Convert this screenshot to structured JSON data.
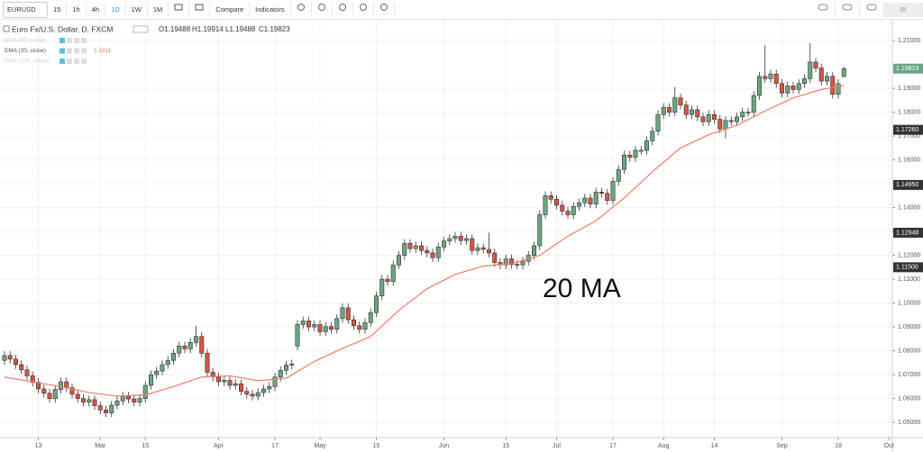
{
  "toolbar": {
    "symbol": "EURUSD",
    "intervals": [
      "15",
      "1h",
      "4h",
      "1D",
      "1W",
      "1M"
    ],
    "active_interval": "1D",
    "compare": "Compare",
    "indicators": "Indicators",
    "user": "IR"
  },
  "chart_data": {
    "type": "candlestick",
    "title": "Euro Fx/U.S. Dollar, D, FXCM",
    "ohlc_legend": [
      "O1.19488",
      "H1.19914",
      "L1.19488",
      "C1.19823"
    ],
    "up_color": "#6ba583",
    "down_color": "#d75442",
    "open": [
      1.076,
      1.078,
      1.0765,
      1.0742,
      1.072,
      1.0695,
      1.0668,
      1.064,
      1.0622,
      1.06,
      1.0638,
      1.067,
      1.0645,
      1.0618,
      1.06,
      1.0585,
      1.0595,
      1.057,
      1.0552,
      1.054,
      1.0572,
      1.059,
      1.061,
      1.0598,
      1.0585,
      1.06,
      1.0655,
      1.07,
      1.0715,
      1.0742,
      1.076,
      1.079,
      1.082,
      1.0808,
      1.0835,
      1.086,
      1.079,
      1.071,
      1.069,
      1.067,
      1.0676,
      1.0655,
      1.0662,
      1.063,
      1.0618,
      1.061,
      1.0625,
      1.064,
      1.065,
      1.069,
      1.0718,
      1.074,
      1.082,
      1.091,
      1.0925,
      1.09,
      1.091,
      1.088,
      1.0902,
      1.089,
      1.0935,
      1.098,
      1.093,
      1.0905,
      1.089,
      1.0918,
      1.096,
      1.103,
      1.11,
      1.109,
      1.116,
      1.12,
      1.125,
      1.1228,
      1.124,
      1.122,
      1.121,
      1.119,
      1.1235,
      1.126,
      1.127,
      1.128,
      1.1262,
      1.127,
      1.122,
      1.1232,
      1.1225,
      1.121,
      1.117,
      1.116,
      1.1185,
      1.1162,
      1.116,
      1.1175,
      1.12,
      1.124,
      1.137,
      1.145,
      1.1435,
      1.141,
      1.1385,
      1.137,
      1.1405,
      1.142,
      1.144,
      1.1415,
      1.1465,
      1.146,
      1.143,
      1.151,
      1.156,
      1.162,
      1.161,
      1.164,
      1.164,
      1.168,
      1.172,
      1.179,
      1.182,
      1.18,
      1.186,
      1.183,
      1.179,
      1.181,
      1.178,
      1.176,
      1.179,
      1.177,
      1.173,
      1.1765,
      1.176,
      1.178,
      1.18,
      1.18,
      1.187,
      1.195,
      1.194,
      1.196,
      1.192,
      1.188,
      1.191,
      1.1895,
      1.192,
      1.194,
      1.201,
      1.1985,
      1.193,
      1.195,
      1.1875,
      1.19488
    ],
    "high": [
      1.0798,
      1.0798,
      1.0783,
      1.076,
      1.0738,
      1.0713,
      1.0686,
      1.0658,
      1.064,
      1.0656,
      1.0688,
      1.0688,
      1.0663,
      1.0636,
      1.0618,
      1.0613,
      1.0613,
      1.0588,
      1.057,
      1.059,
      1.0608,
      1.0628,
      1.0628,
      1.0616,
      1.0618,
      1.0673,
      1.0718,
      1.0733,
      1.076,
      1.0778,
      1.0808,
      1.0838,
      1.0838,
      1.0853,
      1.0905,
      1.0878,
      1.0808,
      1.0728,
      1.0708,
      1.0694,
      1.0694,
      1.068,
      1.068,
      1.0648,
      1.0636,
      1.0643,
      1.0658,
      1.0668,
      1.0708,
      1.0736,
      1.0758,
      1.0763,
      1.0928,
      1.0943,
      1.0943,
      1.0928,
      1.0928,
      1.092,
      1.092,
      1.0953,
      1.0998,
      1.0998,
      1.0948,
      1.0923,
      1.0936,
      1.0978,
      1.1048,
      1.1118,
      1.1118,
      1.1178,
      1.1218,
      1.1268,
      1.1268,
      1.1258,
      1.1258,
      1.1238,
      1.1228,
      1.1253,
      1.1278,
      1.1288,
      1.1298,
      1.1298,
      1.1288,
      1.1288,
      1.125,
      1.125,
      1.1295,
      1.1228,
      1.1188,
      1.1203,
      1.1203,
      1.118,
      1.1193,
      1.1218,
      1.1258,
      1.1388,
      1.1468,
      1.1468,
      1.1453,
      1.1428,
      1.1403,
      1.1423,
      1.1438,
      1.1458,
      1.1458,
      1.1483,
      1.1483,
      1.1478,
      1.1528,
      1.1578,
      1.1638,
      1.1638,
      1.1658,
      1.1658,
      1.1698,
      1.1738,
      1.1808,
      1.1838,
      1.1838,
      1.1905,
      1.1878,
      1.1848,
      1.1828,
      1.1828,
      1.1798,
      1.1808,
      1.1808,
      1.1788,
      1.1783,
      1.1783,
      1.1798,
      1.1818,
      1.1818,
      1.1888,
      1.1968,
      1.208,
      1.1978,
      1.1978,
      1.1938,
      1.1928,
      1.1928,
      1.1938,
      1.1958,
      1.209,
      1.2028,
      1.2003,
      1.1968,
      1.1968,
      1.1938,
      1.19914
    ],
    "low": [
      1.0742,
      1.0747,
      1.0724,
      1.0702,
      1.0677,
      1.065,
      1.0622,
      1.0604,
      1.0582,
      1.0582,
      1.062,
      1.0627,
      1.06,
      1.0582,
      1.0567,
      1.0567,
      1.0552,
      1.0534,
      1.0522,
      1.0522,
      1.0554,
      1.0572,
      1.058,
      1.0567,
      1.0567,
      1.0582,
      1.0637,
      1.0682,
      1.0697,
      1.0724,
      1.0742,
      1.0772,
      1.079,
      1.079,
      1.0817,
      1.0772,
      1.0692,
      1.0672,
      1.0652,
      1.0652,
      1.0637,
      1.0637,
      1.0612,
      1.06,
      1.0592,
      1.0592,
      1.0607,
      1.0622,
      1.0632,
      1.0672,
      1.07,
      1.0722,
      1.0802,
      1.0892,
      1.0882,
      1.0882,
      1.0862,
      1.0862,
      1.0872,
      1.0872,
      1.0917,
      1.0912,
      1.0887,
      1.0872,
      1.0872,
      1.09,
      1.0942,
      1.1012,
      1.1072,
      1.1072,
      1.1142,
      1.1182,
      1.121,
      1.121,
      1.1202,
      1.1192,
      1.1172,
      1.1172,
      1.1217,
      1.1242,
      1.1252,
      1.1244,
      1.1244,
      1.1202,
      1.1202,
      1.1207,
      1.1192,
      1.1152,
      1.1142,
      1.1142,
      1.1144,
      1.1142,
      1.1142,
      1.1157,
      1.1182,
      1.1222,
      1.1352,
      1.1417,
      1.1392,
      1.1367,
      1.1352,
      1.1352,
      1.1387,
      1.1402,
      1.1397,
      1.1397,
      1.1442,
      1.1412,
      1.1412,
      1.1492,
      1.1542,
      1.1592,
      1.1592,
      1.1622,
      1.1622,
      1.1662,
      1.1702,
      1.1772,
      1.1782,
      1.1782,
      1.1812,
      1.1772,
      1.1772,
      1.1762,
      1.1742,
      1.1742,
      1.1752,
      1.1712,
      1.169,
      1.1742,
      1.1742,
      1.1762,
      1.1782,
      1.1782,
      1.1852,
      1.1922,
      1.1922,
      1.1902,
      1.1862,
      1.1862,
      1.1877,
      1.1877,
      1.1902,
      1.1922,
      1.1967,
      1.1912,
      1.1912,
      1.1857,
      1.1857,
      1.19488
    ],
    "close": [
      1.078,
      1.0765,
      1.0742,
      1.072,
      1.0695,
      1.0668,
      1.064,
      1.0622,
      1.06,
      1.0638,
      1.067,
      1.0645,
      1.0618,
      1.06,
      1.0585,
      1.0595,
      1.057,
      1.0552,
      1.054,
      1.0572,
      1.059,
      1.061,
      1.0598,
      1.0585,
      1.06,
      1.0655,
      1.07,
      1.0715,
      1.0742,
      1.076,
      1.079,
      1.082,
      1.0808,
      1.0835,
      1.086,
      1.079,
      1.071,
      1.069,
      1.067,
      1.0676,
      1.0655,
      1.0662,
      1.063,
      1.0618,
      1.061,
      1.0625,
      1.064,
      1.065,
      1.069,
      1.0718,
      1.074,
      1.0745,
      1.091,
      1.0925,
      1.09,
      1.091,
      1.088,
      1.0902,
      1.089,
      1.0935,
      1.098,
      1.093,
      1.0905,
      1.089,
      1.0918,
      1.096,
      1.103,
      1.11,
      1.109,
      1.116,
      1.12,
      1.125,
      1.1228,
      1.124,
      1.122,
      1.121,
      1.119,
      1.1235,
      1.126,
      1.127,
      1.128,
      1.1262,
      1.127,
      1.122,
      1.1232,
      1.1225,
      1.121,
      1.117,
      1.116,
      1.1185,
      1.1162,
      1.116,
      1.1175,
      1.12,
      1.124,
      1.137,
      1.145,
      1.1435,
      1.141,
      1.1385,
      1.137,
      1.1405,
      1.142,
      1.144,
      1.1415,
      1.1465,
      1.146,
      1.143,
      1.151,
      1.156,
      1.162,
      1.161,
      1.164,
      1.164,
      1.168,
      1.172,
      1.179,
      1.182,
      1.18,
      1.186,
      1.183,
      1.179,
      1.181,
      1.178,
      1.176,
      1.179,
      1.177,
      1.173,
      1.1765,
      1.176,
      1.178,
      1.18,
      1.18,
      1.187,
      1.195,
      1.194,
      1.196,
      1.192,
      1.188,
      1.191,
      1.1895,
      1.192,
      1.194,
      1.201,
      1.1985,
      1.193,
      1.195,
      1.1875,
      1.192,
      1.19823
    ],
    "xlim": [
      -0.8,
      157.6
    ],
    "xticks": [
      {
        "value": 6,
        "label": "13"
      },
      {
        "value": 17,
        "label": "Mar"
      },
      {
        "value": 25,
        "label": "15"
      },
      {
        "value": 38,
        "label": "Apr"
      },
      {
        "value": 48,
        "label": "17"
      },
      {
        "value": 56,
        "label": "May"
      },
      {
        "value": 66,
        "label": "15"
      },
      {
        "value": 78,
        "label": "Jun"
      },
      {
        "value": 89,
        "label": "15"
      },
      {
        "value": 98,
        "label": "Jul"
      },
      {
        "value": 108,
        "label": "17"
      },
      {
        "value": 117,
        "label": "Aug"
      },
      {
        "value": 126,
        "label": "14"
      },
      {
        "value": 138,
        "label": "Sep"
      },
      {
        "value": 148,
        "label": "18"
      },
      {
        "value": 157,
        "label": "Oct"
      }
    ],
    "ylim": [
      1.044,
      1.2187
    ],
    "yticks": [
      {
        "value": 1.05,
        "label": "1.05000"
      },
      {
        "value": 1.06,
        "label": "1.06000"
      },
      {
        "value": 1.07,
        "label": "1.07000"
      },
      {
        "value": 1.08,
        "label": "1.08000"
      },
      {
        "value": 1.09,
        "label": "1.09000"
      },
      {
        "value": 1.1,
        "label": "1.10000"
      },
      {
        "value": 1.11,
        "label": "1.11000"
      },
      {
        "value": 1.12,
        "label": "1.12000"
      },
      {
        "value": 1.13,
        "label": "1.13000"
      },
      {
        "value": 1.14,
        "label": "1.14000"
      },
      {
        "value": 1.15,
        "label": "1.15000"
      },
      {
        "value": 1.16,
        "label": "1.16000"
      },
      {
        "value": 1.17,
        "label": "1.17000"
      },
      {
        "value": 1.18,
        "label": "1.18000"
      },
      {
        "value": 1.19,
        "label": "1.19000"
      },
      {
        "value": 1.21,
        "label": "1.21000"
      }
    ],
    "grid": true,
    "price_labels": [
      {
        "value": 1.1726,
        "label": "1.17260"
      },
      {
        "value": 1.1495,
        "label": "1.14950"
      },
      {
        "value": 1.12948,
        "label": "1.12948"
      },
      {
        "value": 1.115,
        "label": "1.11500"
      }
    ],
    "last_price_label": {
      "value": 1.19823,
      "label": "1.19823",
      "color": "#6ba583"
    },
    "overlays": [
      {
        "name": "EMA (50, close)",
        "dimmed": true
      },
      {
        "name": "EMA (20, close)",
        "dimmed": false,
        "color": "#f07c66",
        "last_value_label": "1.1911",
        "x": [
          0,
          5,
          10,
          15,
          20,
          25,
          30,
          35,
          40,
          45,
          50,
          55,
          60,
          65,
          70,
          75,
          80,
          85,
          90,
          95,
          100,
          105,
          110,
          115,
          120,
          125,
          130,
          135,
          140,
          145,
          149
        ],
        "values": [
          1.069,
          1.067,
          1.065,
          1.0625,
          1.061,
          1.0615,
          1.065,
          1.069,
          1.0695,
          1.0675,
          1.0685,
          1.0755,
          1.081,
          1.086,
          1.097,
          1.106,
          1.112,
          1.1155,
          1.1165,
          1.12,
          1.128,
          1.1345,
          1.144,
          1.155,
          1.165,
          1.1705,
          1.1745,
          1.1805,
          1.186,
          1.1895,
          1.1911
        ]
      },
      {
        "name": "EMA (100, close)",
        "dimmed": true
      }
    ],
    "annotation": "20 MA"
  }
}
